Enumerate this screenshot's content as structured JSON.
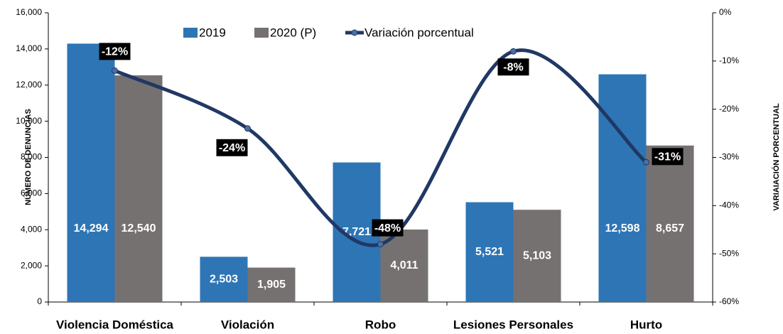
{
  "chart_data": {
    "type": "bar",
    "categories": [
      "Violencia Doméstica",
      "Violación",
      "Robo",
      "Lesiones Personales",
      "Hurto"
    ],
    "series": [
      {
        "name": "2019",
        "color": "#2e75b6",
        "values": [
          14294,
          2503,
          7721,
          5521,
          12598
        ],
        "value_labels": [
          "14,294",
          "2,503",
          "7,721",
          "5,521",
          "12,598"
        ]
      },
      {
        "name": "2020 (P)",
        "color": "#767171",
        "values": [
          12540,
          1905,
          4011,
          5103,
          8657
        ],
        "value_labels": [
          "12,540",
          "1,905",
          "4,011",
          "5,103",
          "8,657"
        ]
      },
      {
        "name": "Variación porcentual",
        "type": "line",
        "axis": "y2",
        "color": "#203864",
        "values": [
          -12,
          -24,
          -48,
          -8,
          -31
        ],
        "value_labels": [
          "-12%",
          "-24%",
          "-48%",
          "-8%",
          "-31%"
        ]
      }
    ],
    "ylabel": "NÚMERO DE DENUNCIAS",
    "y2label": "VARIAIACIÓN PORCENTUAL",
    "ylim": [
      0,
      16000
    ],
    "yticks": [
      0,
      {
        "value": 2000,
        "label": "2,000"
      },
      {
        "value": 4000,
        "label": "4,000"
      },
      {
        "value": 6000,
        "label": "6,000"
      },
      {
        "value": 8000,
        "label": "8,000"
      },
      {
        "value": 10000,
        "label": "10,000"
      },
      {
        "value": 12000,
        "label": "12,000"
      },
      {
        "value": 14000,
        "label": "14,000"
      },
      {
        "value": 16000,
        "label": "16,000"
      }
    ],
    "y2lim": [
      -60,
      0
    ],
    "y2ticks": [
      {
        "value": -60,
        "label": "-60%"
      },
      {
        "value": -50,
        "label": "-50%"
      },
      {
        "value": -40,
        "label": "-40%"
      },
      {
        "value": -30,
        "label": "-30%"
      },
      {
        "value": -20,
        "label": "-20%"
      },
      {
        "value": -10,
        "label": "-10%"
      },
      {
        "value": 0,
        "label": "0%"
      }
    ],
    "legend": "top"
  }
}
